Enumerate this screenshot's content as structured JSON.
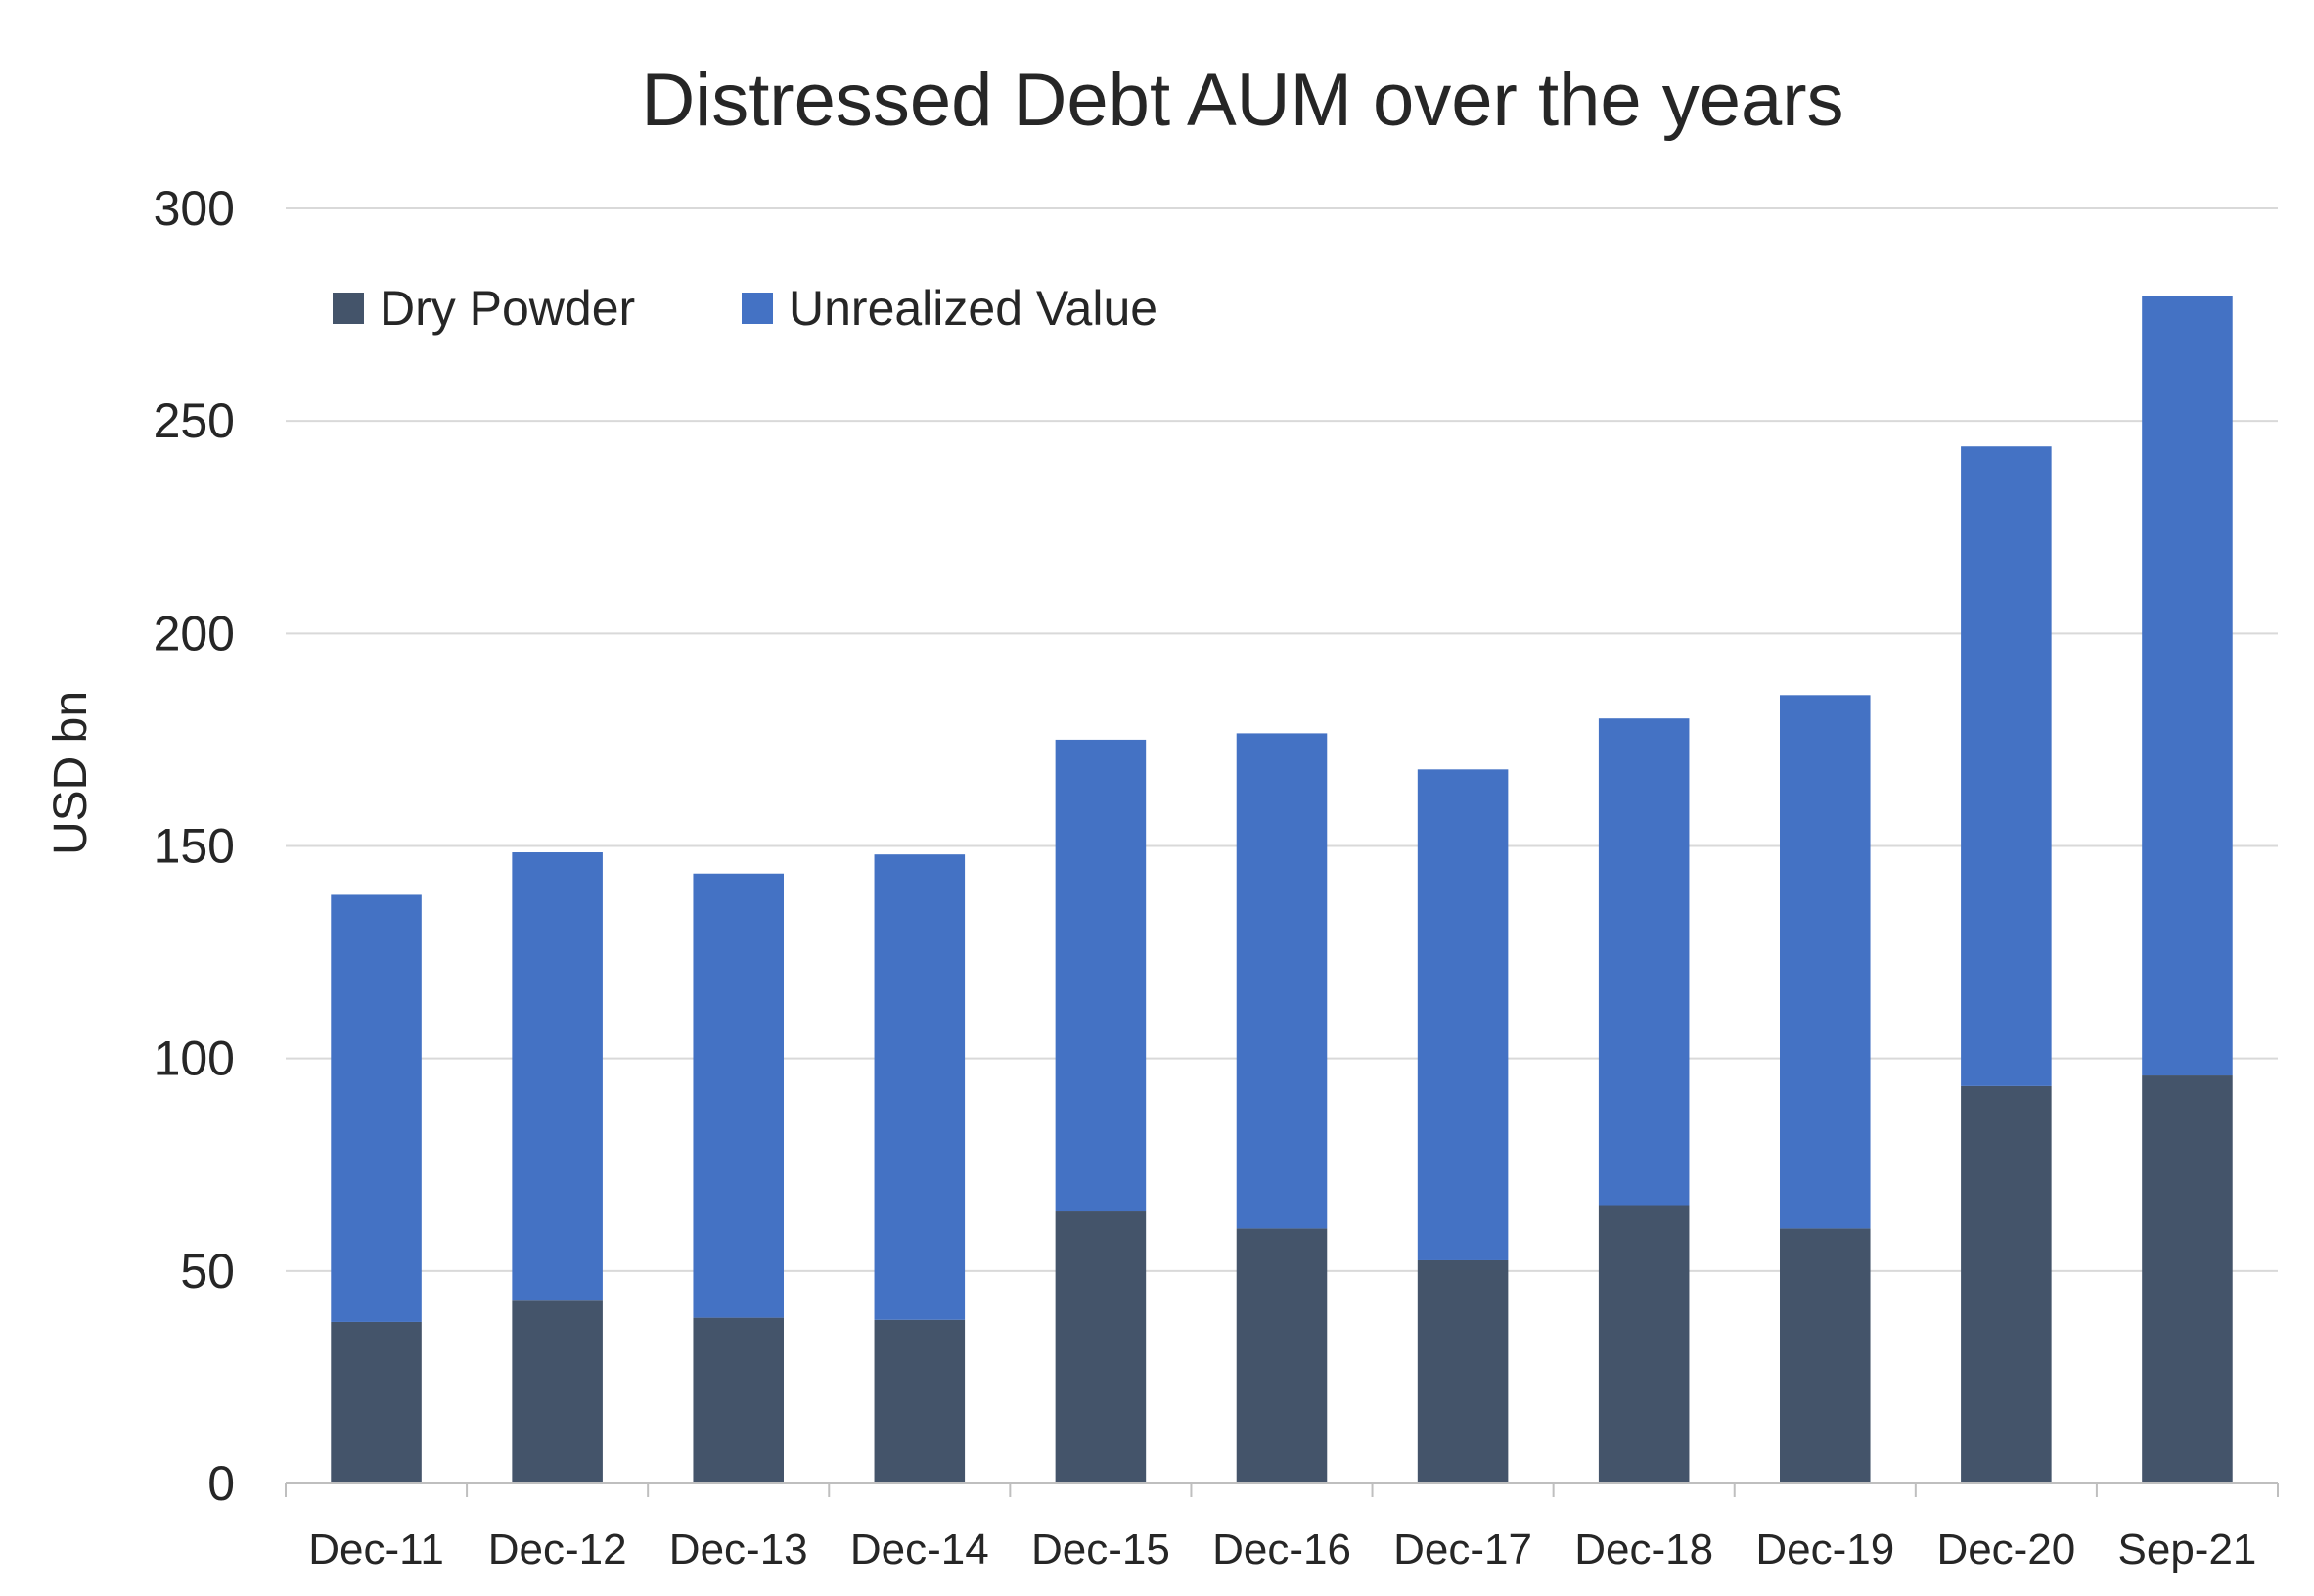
{
  "chart_data": {
    "type": "bar",
    "stacked": true,
    "title": "Distressed Debt AUM over the years",
    "xlabel": "",
    "ylabel": "USD bn",
    "ylim": [
      0,
      300
    ],
    "yticks": [
      0,
      50,
      100,
      150,
      200,
      250,
      300
    ],
    "grid": true,
    "legend_position": "top-left",
    "categories": [
      "Dec-11",
      "Dec-12",
      "Dec-13",
      "Dec-14",
      "Dec-15",
      "Dec-16",
      "Dec-17",
      "Dec-18",
      "Dec-19",
      "Dec-20",
      "Sep-21"
    ],
    "series": [
      {
        "name": "Dry Powder",
        "color": "#44546A",
        "values": [
          38,
          43,
          39,
          38.5,
          64,
          60,
          52.5,
          65.5,
          60,
          93.5,
          96
        ]
      },
      {
        "name": "Unrealized Value",
        "color": "#4472C4",
        "values": [
          100.5,
          105.5,
          104.5,
          109.5,
          111,
          116.5,
          115.5,
          114.5,
          125.5,
          150.5,
          183.5
        ]
      }
    ]
  }
}
